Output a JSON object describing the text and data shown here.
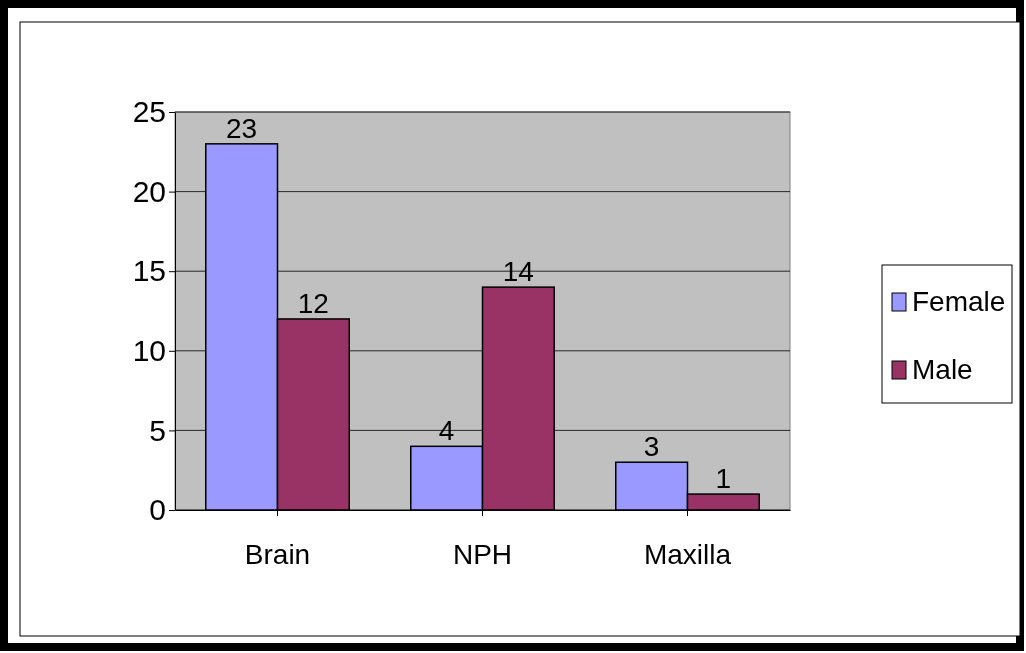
{
  "chart_data": {
    "type": "bar",
    "categories": [
      "Brain",
      "NPH",
      "Maxilla"
    ],
    "series": [
      {
        "name": "Female",
        "color": "#9999ff",
        "values": [
          23,
          4,
          3
        ]
      },
      {
        "name": "Male",
        "color": "#993366",
        "values": [
          12,
          14,
          1
        ]
      }
    ],
    "ylim": [
      0,
      25
    ],
    "yticks": [
      0,
      5,
      10,
      15,
      20,
      25
    ],
    "grid": "y",
    "legend": "right",
    "data_labels": true
  }
}
